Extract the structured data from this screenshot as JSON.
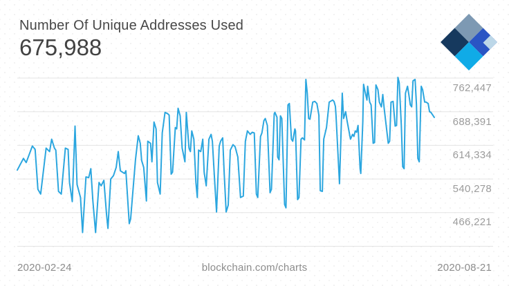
{
  "header": {
    "title": "Number Of Unique Addresses Used",
    "value": "675,988"
  },
  "logo": {
    "label": "blockchain.com logo",
    "colors": {
      "top": "#7D99B3",
      "right": "#2A55C4",
      "left": "#16395E",
      "bottom": "#10ABE7",
      "accent": "#BCD7E8"
    }
  },
  "chart_data": {
    "type": "line",
    "title": "Number Of Unique Addresses Used",
    "latest_value": 675988,
    "line_color": "#2BA6DF",
    "grid_color": "#e3e3e3",
    "grid_on": true,
    "legend": "none",
    "y_ticks": [
      "762,447",
      "688,391",
      "614,334",
      "540,278",
      "466,221"
    ],
    "y_tick_values": [
      762447,
      688391,
      614334,
      540278,
      466221
    ],
    "ylim": [
      392164,
      770000
    ],
    "x_start_label": "2020-02-24",
    "x_end_label": "2020-08-21",
    "watermark": "blockchain.com/charts",
    "points": [
      [
        0.0,
        559900
      ],
      [
        0.0148,
        585600
      ],
      [
        0.0214,
        576500
      ],
      [
        0.0362,
        612800
      ],
      [
        0.0428,
        605300
      ],
      [
        0.0494,
        517600
      ],
      [
        0.056,
        507100
      ],
      [
        0.0692,
        608300
      ],
      [
        0.0774,
        600700
      ],
      [
        0.0824,
        627900
      ],
      [
        0.089,
        608300
      ],
      [
        0.0923,
        603800
      ],
      [
        0.0989,
        513100
      ],
      [
        0.1054,
        507100
      ],
      [
        0.1153,
        608300
      ],
      [
        0.1219,
        605300
      ],
      [
        0.1252,
        532700
      ],
      [
        0.1318,
        490400
      ],
      [
        0.1384,
        656700
      ],
      [
        0.1433,
        528200
      ],
      [
        0.1516,
        499500
      ],
      [
        0.1565,
        422400
      ],
      [
        0.1647,
        544800
      ],
      [
        0.1713,
        543300
      ],
      [
        0.1763,
        562900
      ],
      [
        0.1812,
        491900
      ],
      [
        0.1878,
        422400
      ],
      [
        0.196,
        532700
      ],
      [
        0.201,
        525200
      ],
      [
        0.2076,
        537200
      ],
      [
        0.2141,
        461700
      ],
      [
        0.2174,
        431500
      ],
      [
        0.224,
        540300
      ],
      [
        0.2306,
        547800
      ],
      [
        0.2372,
        565900
      ],
      [
        0.2422,
        600700
      ],
      [
        0.2471,
        558400
      ],
      [
        0.257,
        552400
      ],
      [
        0.2603,
        558400
      ],
      [
        0.2685,
        442000
      ],
      [
        0.2718,
        452600
      ],
      [
        0.2834,
        582600
      ],
      [
        0.29,
        635500
      ],
      [
        0.2949,
        618900
      ],
      [
        0.2982,
        581100
      ],
      [
        0.3032,
        565900
      ],
      [
        0.3097,
        491900
      ],
      [
        0.313,
        623400
      ],
      [
        0.3196,
        618900
      ],
      [
        0.3229,
        578100
      ],
      [
        0.3278,
        665700
      ],
      [
        0.3328,
        650600
      ],
      [
        0.3361,
        532700
      ],
      [
        0.3427,
        507100
      ],
      [
        0.3476,
        641500
      ],
      [
        0.3542,
        686900
      ],
      [
        0.3608,
        683900
      ],
      [
        0.3641,
        680800
      ],
      [
        0.369,
        550900
      ],
      [
        0.3723,
        555400
      ],
      [
        0.3789,
        653600
      ],
      [
        0.3822,
        650600
      ],
      [
        0.3855,
        695900
      ],
      [
        0.3905,
        679300
      ],
      [
        0.3954,
        608300
      ],
      [
        0.402,
        578100
      ],
      [
        0.4053,
        686900
      ],
      [
        0.4118,
        608300
      ],
      [
        0.4151,
        600700
      ],
      [
        0.4184,
        646100
      ],
      [
        0.4234,
        627900
      ],
      [
        0.4283,
        532700
      ],
      [
        0.4316,
        499500
      ],
      [
        0.4349,
        603800
      ],
      [
        0.4399,
        600700
      ],
      [
        0.4448,
        627900
      ],
      [
        0.4481,
        555400
      ],
      [
        0.453,
        525200
      ],
      [
        0.4596,
        627900
      ],
      [
        0.4646,
        638500
      ],
      [
        0.4679,
        623400
      ],
      [
        0.4728,
        543300
      ],
      [
        0.4777,
        467700
      ],
      [
        0.4843,
        612800
      ],
      [
        0.4876,
        623400
      ],
      [
        0.4926,
        630900
      ],
      [
        0.4959,
        558400
      ],
      [
        0.5008,
        467700
      ],
      [
        0.5058,
        482800
      ],
      [
        0.5107,
        603800
      ],
      [
        0.5173,
        615900
      ],
      [
        0.5222,
        611400
      ],
      [
        0.5288,
        588700
      ],
      [
        0.5354,
        499500
      ],
      [
        0.542,
        502500
      ],
      [
        0.5469,
        623400
      ],
      [
        0.5519,
        646100
      ],
      [
        0.5585,
        638500
      ],
      [
        0.5634,
        643000
      ],
      [
        0.5684,
        641500
      ],
      [
        0.5733,
        507100
      ],
      [
        0.5766,
        499500
      ],
      [
        0.5832,
        633900
      ],
      [
        0.5865,
        641500
      ],
      [
        0.5914,
        668700
      ],
      [
        0.5947,
        673300
      ],
      [
        0.5997,
        658200
      ],
      [
        0.6062,
        510100
      ],
      [
        0.6095,
        517600
      ],
      [
        0.6161,
        683900
      ],
      [
        0.6178,
        686900
      ],
      [
        0.6227,
        676300
      ],
      [
        0.6244,
        588700
      ],
      [
        0.6277,
        582600
      ],
      [
        0.631,
        679300
      ],
      [
        0.6343,
        673300
      ],
      [
        0.6409,
        484300
      ],
      [
        0.6442,
        476800
      ],
      [
        0.6491,
        703500
      ],
      [
        0.6524,
        706500
      ],
      [
        0.6573,
        627900
      ],
      [
        0.6606,
        623400
      ],
      [
        0.6656,
        650600
      ],
      [
        0.6672,
        646100
      ],
      [
        0.6722,
        494900
      ],
      [
        0.6755,
        499500
      ],
      [
        0.6804,
        627900
      ],
      [
        0.6837,
        630900
      ],
      [
        0.6887,
        626400
      ],
      [
        0.692,
        759400
      ],
      [
        0.6953,
        729200
      ],
      [
        0.6986,
        673300
      ],
      [
        0.7019,
        671800
      ],
      [
        0.7085,
        709600
      ],
      [
        0.7134,
        711100
      ],
      [
        0.7184,
        706500
      ],
      [
        0.7233,
        680800
      ],
      [
        0.7266,
        514600
      ],
      [
        0.7315,
        513100
      ],
      [
        0.7348,
        627900
      ],
      [
        0.7414,
        653600
      ],
      [
        0.748,
        709600
      ],
      [
        0.7562,
        714100
      ],
      [
        0.7595,
        711100
      ],
      [
        0.7628,
        700000
      ],
      [
        0.7644,
        679300
      ],
      [
        0.7726,
        530000
      ],
      [
        0.7792,
        729200
      ],
      [
        0.7825,
        673300
      ],
      [
        0.7874,
        688400
      ],
      [
        0.7907,
        668700
      ],
      [
        0.799,
        627900
      ],
      [
        0.8039,
        638500
      ],
      [
        0.8072,
        633900
      ],
      [
        0.8105,
        646100
      ],
      [
        0.8138,
        643000
      ],
      [
        0.8171,
        658200
      ],
      [
        0.822,
        562900
      ],
      [
        0.8237,
        552400
      ],
      [
        0.8286,
        665700
      ],
      [
        0.8303,
        748800
      ],
      [
        0.8336,
        733700
      ],
      [
        0.8385,
        714100
      ],
      [
        0.8402,
        744300
      ],
      [
        0.8451,
        709600
      ],
      [
        0.8484,
        703500
      ],
      [
        0.8534,
        618900
      ],
      [
        0.8567,
        620400
      ],
      [
        0.86,
        747300
      ],
      [
        0.8649,
        736800
      ],
      [
        0.8682,
        709600
      ],
      [
        0.8732,
        699000
      ],
      [
        0.8765,
        726200
      ],
      [
        0.8798,
        695900
      ],
      [
        0.8847,
        656700
      ],
      [
        0.8896,
        618900
      ],
      [
        0.8929,
        623400
      ],
      [
        0.8962,
        709600
      ],
      [
        0.9012,
        711100
      ],
      [
        0.9061,
        656700
      ],
      [
        0.9094,
        658200
      ],
      [
        0.9127,
        764000
      ],
      [
        0.916,
        751900
      ],
      [
        0.9209,
        658200
      ],
      [
        0.9242,
        567400
      ],
      [
        0.9275,
        562900
      ],
      [
        0.9308,
        729200
      ],
      [
        0.9358,
        744300
      ],
      [
        0.9391,
        724700
      ],
      [
        0.9424,
        703500
      ],
      [
        0.9457,
        699000
      ],
      [
        0.949,
        756400
      ],
      [
        0.9539,
        759400
      ],
      [
        0.9572,
        703500
      ],
      [
        0.9605,
        585600
      ],
      [
        0.9638,
        578100
      ],
      [
        0.9687,
        744300
      ],
      [
        0.972,
        736800
      ],
      [
        0.977,
        709600
      ],
      [
        0.9803,
        709600
      ],
      [
        0.9852,
        706500
      ],
      [
        0.9885,
        688400
      ],
      [
        0.9918,
        686900
      ],
      [
        1.0,
        675988
      ]
    ]
  }
}
